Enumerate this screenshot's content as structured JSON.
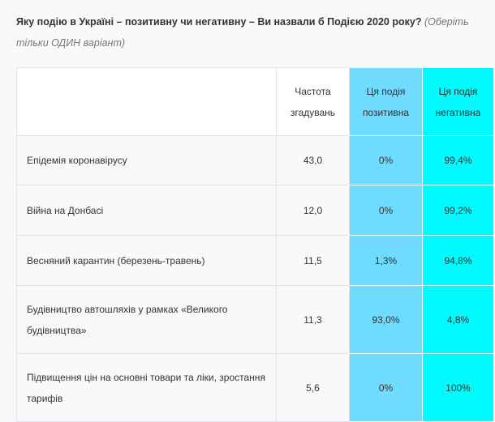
{
  "question": {
    "text": "Яку подію в Україні – позитивну чи негативну –  Ви назвали б Подією 2020 року?",
    "note": "(Оберіть тільки ОДИН варіант)"
  },
  "colors": {
    "positive": "#6fdbff",
    "negative": "#00fbff"
  },
  "table": {
    "headers": [
      "",
      "Частота згадувань",
      "Ця подія позитивна",
      "Ця подія негативна"
    ],
    "rows": [
      {
        "event": "Епідемія коронавірусу",
        "freq": "43,0",
        "pos": "0%",
        "neg": "99,4%"
      },
      {
        "event": "Війна на Донбасі",
        "freq": "12,0",
        "pos": "0%",
        "neg": "99,2%"
      },
      {
        "event": "Весняний карантин (березень-травень)",
        "freq": "11,5",
        "pos": "1,3%",
        "neg": "94,8%"
      },
      {
        "event": "Будівництво автошляхів у рамках «Великого будівництва»",
        "freq": "11,3",
        "pos": "93,0%",
        "neg": "4,8%"
      },
      {
        "event": "Підвищення цін на основні товари та ліки, зростання тарифів",
        "freq": "5,6",
        "pos": "0%",
        "neg": "100%"
      }
    ]
  }
}
